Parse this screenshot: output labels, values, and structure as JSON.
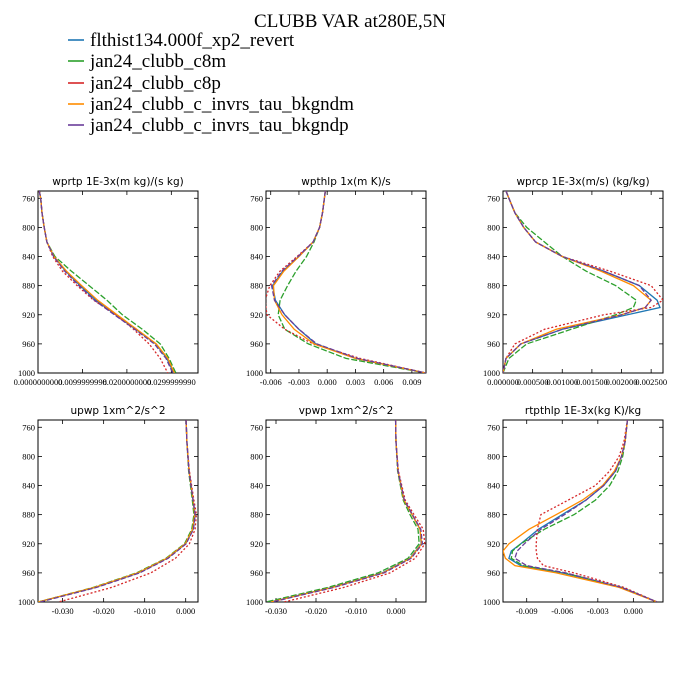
{
  "figure_title": "CLUBB VAR at280E,5N",
  "colors": {
    "flthist134.000f_xp2_revert": "#1f77b4",
    "jan24_clubb_c8m": "#2ca02c",
    "jan24_clubb_c8p": "#d62728",
    "jan24_clubb_c_invrs_tau_bkgndm": "#ff8c00",
    "jan24_clubb_c_invrs_tau_bkgndp": "#6a3d9a"
  },
  "legend": [
    {
      "name": "flthist134.000f_xp2_revert",
      "color": "#1f77b4"
    },
    {
      "name": "jan24_clubb_c8m",
      "color": "#2ca02c"
    },
    {
      "name": "jan24_clubb_c8p",
      "color": "#d62728"
    },
    {
      "name": "jan24_clubb_c_invrs_tau_bkgndm",
      "color": "#ff8c00"
    },
    {
      "name": "jan24_clubb_c_invrs_tau_bkgndp",
      "color": "#6a3d9a"
    }
  ],
  "chart_data": [
    {
      "type": "line",
      "title": "wprtp  1E-3x(m kg)/(s kg)",
      "xlim": [
        0,
        0.036
      ],
      "ylim": [
        1000,
        750
      ],
      "y_reversed": true,
      "xticks": [
        0,
        0.0099999998,
        0.02,
        0.0299999993
      ],
      "xtick_labels": [
        "0.0000000000",
        "0.0099999998",
        "0.0200000000",
        "0.0299999990"
      ],
      "yticks": [
        760,
        800,
        840,
        880,
        920,
        960,
        1000
      ],
      "ytick_labels": [
        "760",
        "800",
        "840",
        "880",
        "920",
        "960",
        "1000"
      ],
      "y": [
        750,
        760,
        780,
        800,
        820,
        840,
        860,
        880,
        900,
        920,
        940,
        960,
        980,
        1000
      ],
      "series": [
        {
          "name": "flthist134.000f_xp2_revert",
          "x": [
            0.0003,
            0.0006,
            0.0009,
            0.0014,
            0.002,
            0.0036,
            0.0062,
            0.0095,
            0.013,
            0.0175,
            0.022,
            0.0265,
            0.029,
            0.0305
          ]
        },
        {
          "name": "jan24_clubb_c8m",
          "x": [
            0.0003,
            0.0006,
            0.0009,
            0.0014,
            0.002,
            0.0038,
            0.0075,
            0.0115,
            0.0155,
            0.019,
            0.0235,
            0.0275,
            0.0295,
            0.031
          ]
        },
        {
          "name": "jan24_clubb_c8p",
          "x": [
            0.0003,
            0.0006,
            0.0009,
            0.0014,
            0.002,
            0.0033,
            0.0055,
            0.0088,
            0.0125,
            0.0175,
            0.0215,
            0.025,
            0.0275,
            0.0292
          ]
        },
        {
          "name": "jan24_clubb_c_invrs_tau_bkgndm",
          "x": [
            0.0003,
            0.0006,
            0.0009,
            0.0014,
            0.002,
            0.0036,
            0.0064,
            0.0098,
            0.0134,
            0.0178,
            0.0222,
            0.0266,
            0.0292,
            0.0307
          ]
        },
        {
          "name": "jan24_clubb_c_invrs_tau_bkgndp",
          "x": [
            0.0003,
            0.0006,
            0.0009,
            0.0014,
            0.002,
            0.0035,
            0.006,
            0.0092,
            0.0127,
            0.0172,
            0.0218,
            0.0262,
            0.0288,
            0.0303
          ]
        }
      ]
    },
    {
      "type": "line",
      "title": "wpthlp  1x(m K)/s",
      "xlim": [
        -0.0065,
        0.0105
      ],
      "ylim": [
        1000,
        750
      ],
      "y_reversed": true,
      "xticks": [
        -0.006,
        -0.003,
        0,
        0.003,
        0.006,
        0.009
      ],
      "xtick_labels": [
        "-0.006",
        "-0.003",
        "0.000",
        "0.003",
        "0.006",
        "0.009"
      ],
      "yticks": [
        760,
        800,
        840,
        880,
        920,
        960,
        1000
      ],
      "ytick_labels": [
        "760",
        "800",
        "840",
        "880",
        "920",
        "960",
        "1000"
      ],
      "y": [
        750,
        760,
        780,
        800,
        820,
        840,
        860,
        880,
        900,
        920,
        940,
        960,
        980,
        1000
      ],
      "series": [
        {
          "name": "flthist134.000f_xp2_revert",
          "x": [
            -0.0002,
            -0.0003,
            -0.0005,
            -0.0008,
            -0.0015,
            -0.003,
            -0.0047,
            -0.0058,
            -0.0055,
            -0.0045,
            -0.003,
            -0.0012,
            0.003,
            0.0105
          ]
        },
        {
          "name": "jan24_clubb_c8m",
          "x": [
            -0.0002,
            -0.0003,
            -0.0005,
            -0.0008,
            -0.0014,
            -0.0022,
            -0.0033,
            -0.0042,
            -0.005,
            -0.0052,
            -0.0045,
            -0.002,
            0.002,
            0.0105
          ]
        },
        {
          "name": "jan24_clubb_c8p",
          "x": [
            -0.0002,
            -0.0003,
            -0.0005,
            -0.0008,
            -0.0015,
            -0.0032,
            -0.005,
            -0.0061,
            -0.0066,
            -0.0064,
            -0.0045,
            -0.0015,
            0.0035,
            0.0105
          ]
        },
        {
          "name": "jan24_clubb_c_invrs_tau_bkgndm",
          "x": [
            -0.0002,
            -0.0003,
            -0.0005,
            -0.0008,
            -0.0015,
            -0.003,
            -0.0046,
            -0.0057,
            -0.0056,
            -0.0048,
            -0.0035,
            -0.0014,
            0.003,
            0.0105
          ]
        },
        {
          "name": "jan24_clubb_c_invrs_tau_bkgndp",
          "x": [
            -0.0002,
            -0.0003,
            -0.0005,
            -0.0008,
            -0.0015,
            -0.0031,
            -0.0048,
            -0.0059,
            -0.0056,
            -0.0045,
            -0.003,
            -0.0011,
            0.0032,
            0.0105
          ]
        }
      ]
    },
    {
      "type": "line",
      "title": "wprcp  1E-3x(m/s) (kg/kg)",
      "xlim": [
        0,
        0.0027
      ],
      "ylim": [
        1000,
        750
      ],
      "y_reversed": true,
      "xticks": [
        0,
        0.0005,
        0.001,
        0.0015,
        0.002,
        0.0025
      ],
      "xtick_labels": [
        "0.000000",
        "0.000500",
        "0.001000",
        "0.001500",
        "0.002000",
        "0.002500"
      ],
      "yticks": [
        760,
        800,
        840,
        880,
        920,
        960,
        1000
      ],
      "ytick_labels": [
        "760",
        "800",
        "840",
        "880",
        "920",
        "960",
        "1000"
      ],
      "y": [
        750,
        760,
        780,
        800,
        820,
        840,
        860,
        880,
        900,
        910,
        920,
        940,
        960,
        980,
        1000
      ],
      "series": [
        {
          "name": "flthist134.000f_xp2_revert",
          "x": [
            5e-05,
            0.0001,
            0.0002,
            0.00035,
            0.00055,
            0.001,
            0.0017,
            0.0023,
            0.0026,
            0.00265,
            0.0021,
            0.001,
            0.0003,
            5e-05,
            0
          ]
        },
        {
          "name": "jan24_clubb_c8m",
          "x": [
            5e-05,
            0.0001,
            0.0002,
            0.0004,
            0.0007,
            0.001,
            0.0014,
            0.0019,
            0.00225,
            0.0022,
            0.0019,
            0.00115,
            0.0004,
            0.0001,
            0
          ]
        },
        {
          "name": "jan24_clubb_c8p",
          "x": [
            5e-05,
            0.0001,
            0.0002,
            0.00035,
            0.00055,
            0.001,
            0.0018,
            0.0025,
            0.0027,
            0.0025,
            0.0017,
            0.0007,
            0.0002,
            5e-05,
            0
          ]
        },
        {
          "name": "jan24_clubb_c_invrs_tau_bkgndm",
          "x": [
            5e-05,
            0.0001,
            0.0002,
            0.00035,
            0.00055,
            0.001,
            0.00165,
            0.0022,
            0.0025,
            0.0024,
            0.002,
            0.0009,
            0.0003,
            5e-05,
            0
          ]
        },
        {
          "name": "jan24_clubb_c_invrs_tau_bkgndp",
          "x": [
            5e-05,
            0.0001,
            0.0002,
            0.00035,
            0.00055,
            0.001,
            0.0017,
            0.0023,
            0.0025,
            0.0024,
            0.002,
            0.001,
            0.0003,
            5e-05,
            0
          ]
        }
      ]
    },
    {
      "type": "line",
      "title": "upwp  1xm^2/s^2",
      "xlim": [
        -0.036,
        0.003
      ],
      "ylim": [
        1000,
        750
      ],
      "y_reversed": true,
      "xticks": [
        -0.03,
        -0.02,
        -0.01,
        0
      ],
      "xtick_labels": [
        "-0.030",
        "-0.020",
        "-0.010",
        "0.000"
      ],
      "yticks": [
        760,
        800,
        840,
        880,
        920,
        960,
        1000
      ],
      "ytick_labels": [
        "760",
        "800",
        "840",
        "880",
        "920",
        "960",
        "1000"
      ],
      "y": [
        750,
        780,
        820,
        860,
        880,
        900,
        920,
        940,
        960,
        980,
        1000
      ],
      "series": [
        {
          "name": "flthist134.000f_xp2_revert",
          "x": [
            0.0001,
            0.0003,
            0.0008,
            0.0018,
            0.0023,
            0.0018,
            0.0,
            -0.0045,
            -0.0115,
            -0.022,
            -0.036
          ]
        },
        {
          "name": "jan24_clubb_c8m",
          "x": [
            0.0001,
            0.0003,
            0.0007,
            0.0016,
            0.002,
            0.0015,
            -0.0003,
            -0.0048,
            -0.012,
            -0.0225,
            -0.036
          ]
        },
        {
          "name": "jan24_clubb_c8p",
          "x": [
            0.0001,
            0.0003,
            0.0009,
            0.002,
            0.0026,
            0.0023,
            0.0009,
            -0.0025,
            -0.0085,
            -0.018,
            -0.031
          ]
        },
        {
          "name": "jan24_clubb_c_invrs_tau_bkgndm",
          "x": [
            0.0001,
            0.0003,
            0.0008,
            0.0018,
            0.0022,
            0.0017,
            -0.0001,
            -0.0046,
            -0.0117,
            -0.0222,
            -0.036
          ]
        },
        {
          "name": "jan24_clubb_c_invrs_tau_bkgndp",
          "x": [
            0.0001,
            0.0003,
            0.0008,
            0.0018,
            0.0023,
            0.0019,
            0.0001,
            -0.0043,
            -0.0112,
            -0.0217,
            -0.0355
          ]
        }
      ]
    },
    {
      "type": "line",
      "title": "vpwp  1xm^2/s^2",
      "xlim": [
        -0.0325,
        0.0075
      ],
      "ylim": [
        1000,
        750
      ],
      "y_reversed": true,
      "xticks": [
        -0.03,
        -0.02,
        -0.01,
        0
      ],
      "xtick_labels": [
        "-0.030",
        "-0.020",
        "-0.010",
        "0.000"
      ],
      "yticks": [
        760,
        800,
        840,
        880,
        920,
        960,
        1000
      ],
      "ytick_labels": [
        "760",
        "800",
        "840",
        "880",
        "920",
        "960",
        "1000"
      ],
      "y": [
        750,
        780,
        820,
        860,
        880,
        900,
        920,
        940,
        960,
        980,
        1000
      ],
      "series": [
        {
          "name": "flthist134.000f_xp2_revert",
          "x": [
            -0.0001,
            0.0,
            0.0005,
            0.002,
            0.004,
            0.006,
            0.0063,
            0.0035,
            -0.0035,
            -0.016,
            -0.0315
          ]
        },
        {
          "name": "jan24_clubb_c8m",
          "x": [
            -0.0001,
            0.0,
            0.0004,
            0.0018,
            0.0035,
            0.0055,
            0.0058,
            0.003,
            -0.0045,
            -0.017,
            -0.0325
          ]
        },
        {
          "name": "jan24_clubb_c8p",
          "x": [
            -0.0001,
            0.0,
            0.0006,
            0.0023,
            0.0045,
            0.0068,
            0.0072,
            0.0048,
            -0.0015,
            -0.013,
            -0.028
          ]
        },
        {
          "name": "jan24_clubb_c_invrs_tau_bkgndm",
          "x": [
            -0.0001,
            0.0,
            0.0005,
            0.002,
            0.004,
            0.006,
            0.0064,
            0.0036,
            -0.0033,
            -0.0158,
            -0.0313
          ]
        },
        {
          "name": "jan24_clubb_c_invrs_tau_bkgndp",
          "x": [
            -0.0001,
            0.0,
            0.0005,
            0.0021,
            0.0041,
            0.0062,
            0.0066,
            0.0038,
            -0.003,
            -0.0155,
            -0.031
          ]
        }
      ]
    },
    {
      "type": "line",
      "title": "rtpthlp  1E-3x(kg K)/kg",
      "xlim": [
        -0.011,
        0.0025
      ],
      "ylim": [
        1000,
        750
      ],
      "y_reversed": true,
      "xticks": [
        -0.009,
        -0.006,
        -0.003,
        0
      ],
      "xtick_labels": [
        "-0.009",
        "-0.006",
        "-0.003",
        "0.000"
      ],
      "yticks": [
        760,
        800,
        840,
        880,
        920,
        960,
        1000
      ],
      "ytick_labels": [
        "760",
        "800",
        "840",
        "880",
        "920",
        "960",
        "1000"
      ],
      "y": [
        750,
        780,
        800,
        820,
        840,
        860,
        880,
        900,
        920,
        930,
        940,
        950,
        960,
        980,
        1000
      ],
      "series": [
        {
          "name": "flthist134.000f_xp2_revert",
          "x": [
            -0.0005,
            -0.0007,
            -0.001,
            -0.0015,
            -0.0025,
            -0.004,
            -0.006,
            -0.008,
            -0.0095,
            -0.0103,
            -0.0105,
            -0.0095,
            -0.006,
            -0.001,
            0.002
          ]
        },
        {
          "name": "jan24_clubb_c8m",
          "x": [
            -0.0005,
            -0.0007,
            -0.0009,
            -0.0013,
            -0.002,
            -0.0032,
            -0.005,
            -0.0075,
            -0.0095,
            -0.0102,
            -0.0103,
            -0.0093,
            -0.0058,
            -0.001,
            0.002
          ]
        },
        {
          "name": "jan24_clubb_c8p",
          "x": [
            -0.0005,
            -0.0008,
            -0.0012,
            -0.002,
            -0.0032,
            -0.0055,
            -0.0078,
            -0.0081,
            -0.0082,
            -0.0082,
            -0.0081,
            -0.0076,
            -0.005,
            -0.0008,
            0.002
          ]
        },
        {
          "name": "jan24_clubb_c_invrs_tau_bkgndm",
          "x": [
            -0.0005,
            -0.0007,
            -0.001,
            -0.0016,
            -0.0026,
            -0.0043,
            -0.0065,
            -0.0088,
            -0.0105,
            -0.011,
            -0.0108,
            -0.01,
            -0.0065,
            -0.0012,
            0.002
          ]
        },
        {
          "name": "jan24_clubb_c_invrs_tau_bkgndp",
          "x": [
            -0.0005,
            -0.0007,
            -0.001,
            -0.0015,
            -0.0025,
            -0.004,
            -0.0058,
            -0.0078,
            -0.0092,
            -0.0098,
            -0.01,
            -0.009,
            -0.0057,
            -0.001,
            0.002
          ]
        }
      ]
    }
  ]
}
